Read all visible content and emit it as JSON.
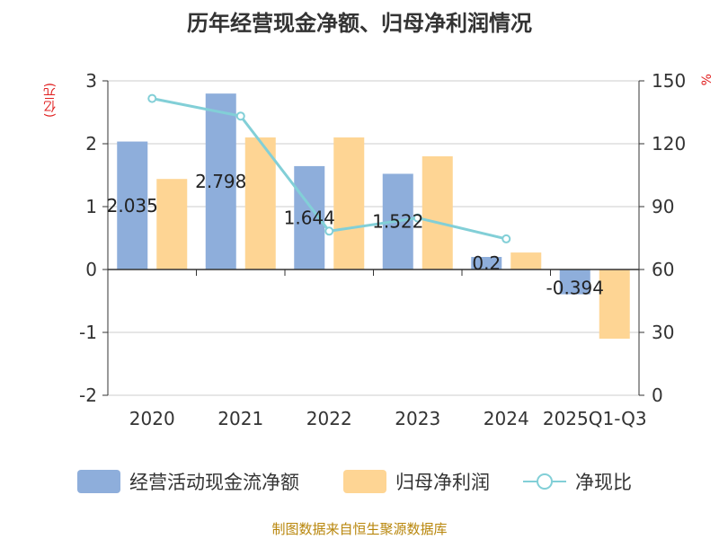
{
  "title": "历年经营现金净额、归母净利润情况",
  "left_axis_unit": "(亿元)",
  "right_axis_unit": "%",
  "source": "制图数据来自恒生聚源数据库",
  "colors": {
    "cash_flow": "#8eaedb",
    "net_profit": "#fed594",
    "ratio": "#82cfd7",
    "unit_red": "#e02020"
  },
  "chart_data": {
    "type": "bar",
    "title": "历年经营现金净额、归母净利润情况",
    "categories": [
      "2020",
      "2021",
      "2022",
      "2023",
      "2024",
      "2025Q1-Q3"
    ],
    "series": [
      {
        "name": "经营活动现金流净额",
        "kind": "bar",
        "axis": "left",
        "values": [
          2.035,
          2.798,
          1.644,
          1.522,
          0.2,
          -0.394
        ],
        "labels": [
          "2.035",
          "2.798",
          "1.644",
          "1.522",
          "0.2",
          "-0.394"
        ]
      },
      {
        "name": "归母净利润",
        "kind": "bar",
        "axis": "left",
        "values": [
          1.44,
          2.1,
          2.1,
          1.8,
          0.27,
          -1.1
        ]
      },
      {
        "name": "净现比",
        "kind": "line",
        "axis": "right",
        "values": [
          141.6,
          133.2,
          78.3,
          84.6,
          74.6,
          null
        ]
      }
    ],
    "ylabel": "(亿元)",
    "ylim": [
      -2,
      3
    ],
    "yticks": [
      "-2",
      "-1",
      "0",
      "1",
      "2",
      "3"
    ],
    "y2label": "%",
    "y2lim": [
      0,
      150
    ],
    "y2ticks": [
      "0",
      "30",
      "60",
      "90",
      "120",
      "150"
    ],
    "grid": true,
    "legend": "bottom"
  }
}
